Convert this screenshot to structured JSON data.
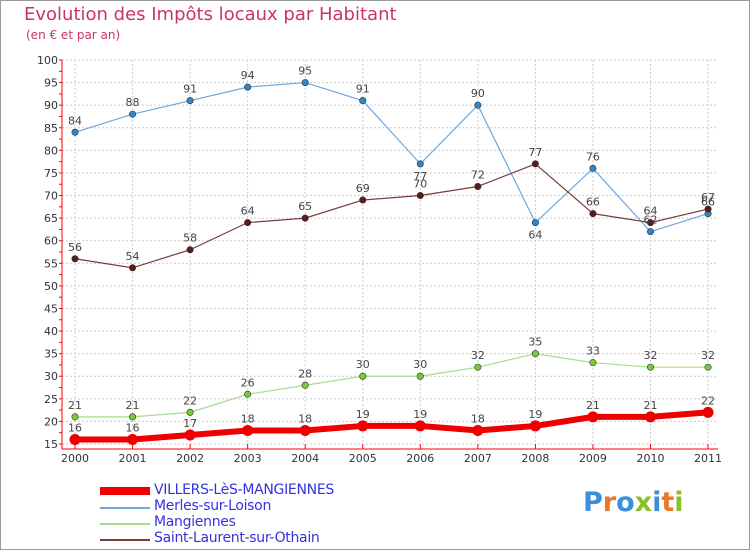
{
  "header": {
    "title": "Evolution des Impôts locaux par Habitant",
    "subtitle": "(en € et par an)"
  },
  "logo": {
    "text": "Proxiti",
    "colors": [
      "#3b8fd8",
      "#e8792b",
      "#3b8fd8",
      "#8bbf2a",
      "#3b8fd8",
      "#e8792b",
      "#8bbf2a"
    ]
  },
  "colors": {
    "title": "#cc3366",
    "legend_text": "#3333dd",
    "axis": "#ff0000",
    "grid": "#cccccc",
    "value_label": "#444444"
  },
  "chart_data": {
    "type": "line",
    "title": "Evolution des Impôts locaux par Habitant",
    "subtitle": "(en € et par an)",
    "xlabel": "",
    "ylabel": "",
    "categories": [
      "2000",
      "2001",
      "2002",
      "2003",
      "2004",
      "2005",
      "2006",
      "2007",
      "2008",
      "2009",
      "2010",
      "2011"
    ],
    "ylim": [
      15,
      100
    ],
    "yticks": [
      15,
      20,
      25,
      30,
      35,
      40,
      45,
      50,
      55,
      60,
      65,
      70,
      75,
      80,
      85,
      90,
      95,
      100
    ],
    "grid": true,
    "legend_position": "bottom-left",
    "series": [
      {
        "name": "Merles-sur-Loison",
        "color": "#6fa8dc",
        "marker_color": "#2f86c8",
        "line_width": 1.2,
        "values": [
          84,
          88,
          91,
          94,
          95,
          91,
          77,
          90,
          64,
          76,
          62,
          66
        ],
        "labels": [
          "84",
          "88",
          "91",
          "94",
          "95",
          "91",
          "77",
          "90",
          "64",
          "76",
          "62",
          "66"
        ]
      },
      {
        "name": "Saint-Laurent-sur-Othain",
        "color": "#7a3b3b",
        "marker_color": "#5c1a1a",
        "line_width": 1.2,
        "values": [
          56,
          54,
          58,
          64,
          65,
          69,
          70,
          72,
          77,
          66,
          64,
          67
        ],
        "labels": [
          "56",
          "54",
          "58",
          "64",
          "65",
          "69",
          "70",
          "72",
          "77",
          "66",
          "64",
          "67"
        ]
      },
      {
        "name": "Mangiennes",
        "color": "#a6dd8a",
        "marker_color": "#77cc33",
        "line_width": 1.2,
        "values": [
          21,
          21,
          22,
          26,
          28,
          30,
          30,
          32,
          35,
          33,
          32,
          32
        ],
        "labels": [
          "21",
          "21",
          "22",
          "26",
          "28",
          "30",
          "30",
          "32",
          "35",
          "33",
          "32",
          "32"
        ]
      },
      {
        "name": "VILLERS-LèS-MANGIENNES",
        "color": "#ee0000",
        "marker_color": "#ee0000",
        "line_width": 6,
        "values": [
          16,
          16,
          17,
          18,
          18,
          19,
          19,
          18,
          19,
          21,
          21,
          22
        ],
        "labels": [
          "16",
          "16",
          "17",
          "18",
          "18",
          "19",
          "19",
          "18",
          "19",
          "21",
          "21",
          "22"
        ]
      }
    ],
    "legend_order": [
      "VILLERS-LèS-MANGIENNES",
      "Merles-sur-Loison",
      "Mangiennes",
      "Saint-Laurent-sur-Othain"
    ]
  }
}
